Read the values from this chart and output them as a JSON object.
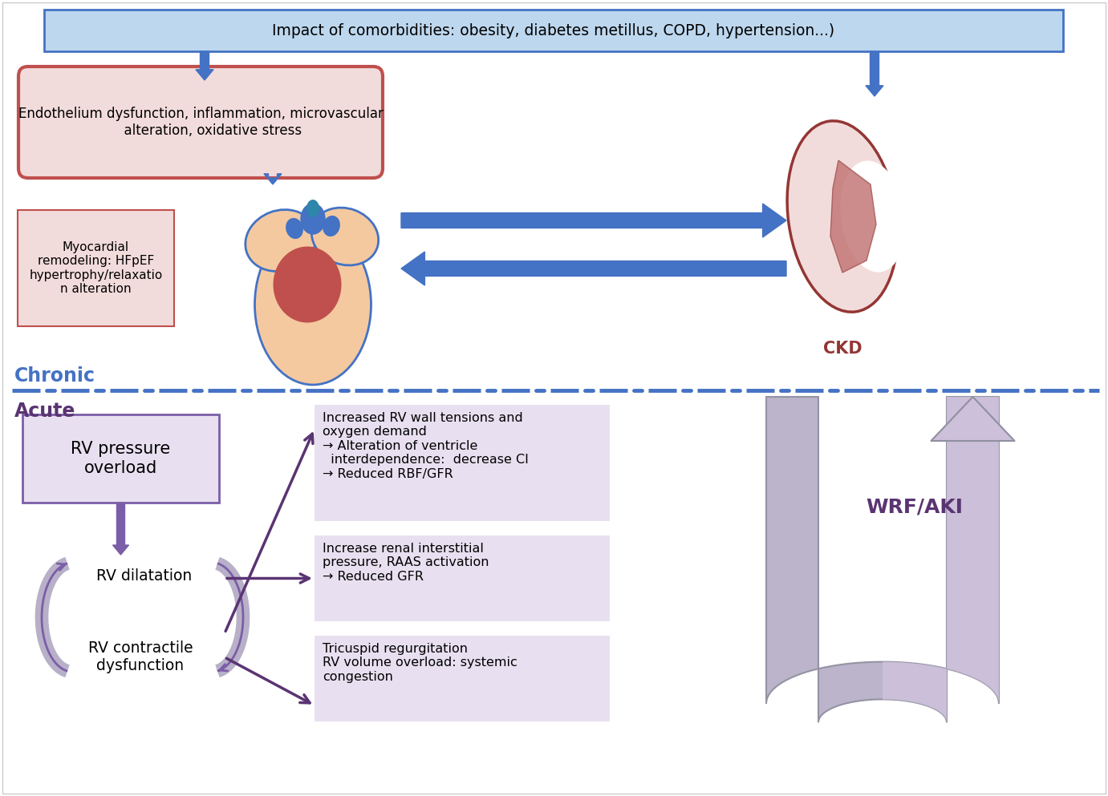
{
  "bg_color": "#ffffff",
  "blue": "#4472C4",
  "blue_light": "#BDD7EE",
  "blue_mid": "#5B9BD5",
  "red": "#C0504D",
  "red_light": "#F2DCDB",
  "red_dark": "#943634",
  "purple": "#5A3472",
  "purple_mid": "#7B5EA7",
  "purple_light": "#CCC0DA",
  "purple_lighter": "#E8E0F0",
  "gray": "#808080",
  "gray_light": "#B8B0C8",
  "gray_dark": "#706080",
  "heart_body": "#F5CBA7",
  "heart_red": "#C0504D",
  "heart_blue": "#4472C4",
  "top_box_text": "Impact of comorbidities: obesity, diabetes metillus, COPD, hypertension...)",
  "left_box_text": "Endothelium dysfunction, inflammation, microvascular\n      alteration, oxidative stress",
  "myocardial_box_text": "Myocardial\nremodeling: HFpEF\nhypertrophy/relaxatio\nn alteration",
  "ckd_label": "CKD",
  "rv_pressure_text": "RV pressure\noverload",
  "rv_dilatation_text": "RV dilatation",
  "rv_contractile_text": "RV contractile\ndysfunction",
  "box1_text": "Increased RV wall tensions and\noxygen demand\n→ Alteration of ventricle\n  interdependence:  decrease CI\n→ Reduced RBF/GFR",
  "box2_text": "Increase renal interstitial\npressure, RAAS activation\n→ Reduced GFR",
  "box3_text": "Tricuspid regurgitation\nRV volume overload: systemic\ncongestion",
  "wrf_aki_text": "WRF/AKI",
  "chronic_text": "Chronic",
  "acute_text": "Acute"
}
